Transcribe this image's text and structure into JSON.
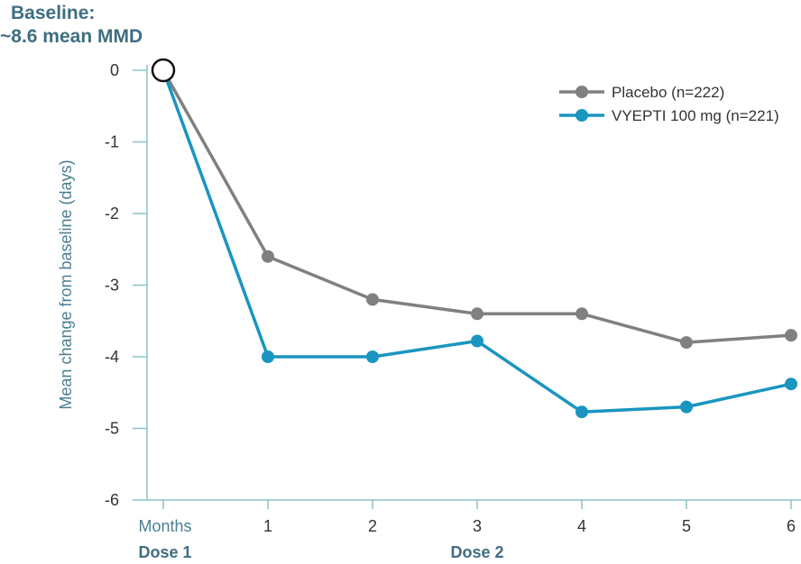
{
  "header": {
    "line1": "Baseline:",
    "line2": "~8.6 mean MMD"
  },
  "chart_data": {
    "type": "line",
    "ylabel": "Mean change from baseline (days)",
    "ylim": [
      -6,
      0
    ],
    "yticks": [
      "0",
      "-1",
      "-2",
      "-3",
      "-4",
      "-5",
      "-6"
    ],
    "x": [
      0,
      1,
      2,
      3,
      4,
      5,
      6
    ],
    "xtick_labels": [
      "Months",
      "1",
      "2",
      "3",
      "4",
      "5",
      "6"
    ],
    "annotations": [
      {
        "text": "Dose 1",
        "x": 0
      },
      {
        "text": "Dose 2",
        "x": 3
      }
    ],
    "grid": false,
    "legend_position": "top-right",
    "baseline_point": {
      "x": 0,
      "y": 0
    },
    "series": [
      {
        "name": "Placebo (n=222)",
        "color": "#808080",
        "values": [
          0,
          -2.6,
          -3.2,
          -3.4,
          -3.4,
          -3.8,
          -3.7
        ]
      },
      {
        "name": "VYEPTI 100 mg (n=221)",
        "color": "#1a95c0",
        "values": [
          0,
          -4.0,
          -4.0,
          -3.78,
          -4.77,
          -4.7,
          -4.38
        ]
      }
    ],
    "axis_color": "#8cc2c6"
  }
}
